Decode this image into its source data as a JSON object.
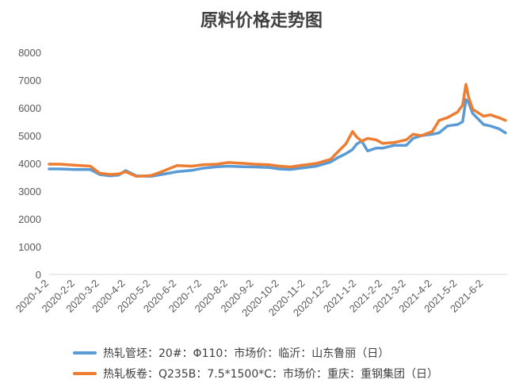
{
  "chart_data": {
    "type": "line",
    "title": "原料价格走势图",
    "xlabel": "",
    "ylabel": "",
    "ylim": [
      0,
      8000
    ],
    "yticks": [
      0,
      1000,
      2000,
      3000,
      4000,
      5000,
      6000,
      7000,
      8000
    ],
    "x_tick_labels": [
      "2020-1-2",
      "2020-2-2",
      "2020-3-2",
      "2020-4-2",
      "2020-5-2",
      "2020-6-2",
      "2020-7-2",
      "2020-8-2",
      "2020-9-2",
      "2020-10-2",
      "2020-11-2",
      "2020-12-2",
      "2021-1-2",
      "2021-2-2",
      "2021-3-2",
      "2021-4-2",
      "2021-5-2",
      "2021-6-2"
    ],
    "grid": false,
    "legend_position": "bottom",
    "series": [
      {
        "name": "热轧管坯：20#：Φ110：市场价：临沂：山东鲁丽（日）",
        "color": "#5B9BD5",
        "x": [
          "2020-1-2",
          "2020-1-15",
          "2020-2-2",
          "2020-2-20",
          "2020-3-2",
          "2020-3-15",
          "2020-3-25",
          "2020-4-2",
          "2020-4-15",
          "2020-5-2",
          "2020-5-15",
          "2020-6-2",
          "2020-6-20",
          "2020-7-2",
          "2020-7-20",
          "2020-8-2",
          "2020-8-20",
          "2020-9-2",
          "2020-9-20",
          "2020-10-2",
          "2020-10-15",
          "2020-11-2",
          "2020-11-15",
          "2020-12-2",
          "2020-12-10",
          "2020-12-20",
          "2020-12-28",
          "2021-1-2",
          "2021-1-8",
          "2021-1-15",
          "2021-1-25",
          "2021-2-2",
          "2021-2-15",
          "2021-3-2",
          "2021-3-10",
          "2021-3-20",
          "2021-4-2",
          "2021-4-10",
          "2021-4-20",
          "2021-5-2",
          "2021-5-8",
          "2021-5-12",
          "2021-5-15",
          "2021-5-20",
          "2021-6-2",
          "2021-6-10",
          "2021-6-20",
          "2021-6-28"
        ],
        "values": [
          3800,
          3800,
          3780,
          3780,
          3600,
          3550,
          3580,
          3740,
          3550,
          3530,
          3600,
          3700,
          3750,
          3820,
          3880,
          3900,
          3880,
          3870,
          3850,
          3800,
          3780,
          3850,
          3900,
          4050,
          4200,
          4350,
          4500,
          4700,
          4800,
          4450,
          4550,
          4550,
          4650,
          4650,
          4900,
          5000,
          5050,
          5100,
          5350,
          5400,
          5500,
          6300,
          6200,
          5800,
          5400,
          5350,
          5250,
          5100
        ]
      },
      {
        "name": "热轧板卷：Q235B：7.5*1500*C：市场价：重庆：重钢集团（日）",
        "color": "#ED7D31",
        "x": [
          "2020-1-2",
          "2020-1-15",
          "2020-2-2",
          "2020-2-20",
          "2020-3-2",
          "2020-3-15",
          "2020-3-25",
          "2020-4-2",
          "2020-4-15",
          "2020-5-2",
          "2020-5-15",
          "2020-6-2",
          "2020-6-20",
          "2020-7-2",
          "2020-7-20",
          "2020-8-2",
          "2020-8-20",
          "2020-9-2",
          "2020-9-20",
          "2020-10-2",
          "2020-10-15",
          "2020-11-2",
          "2020-11-15",
          "2020-12-2",
          "2020-12-10",
          "2020-12-20",
          "2020-12-28",
          "2021-1-2",
          "2021-1-8",
          "2021-1-15",
          "2021-1-25",
          "2021-2-2",
          "2021-2-15",
          "2021-3-2",
          "2021-3-10",
          "2021-3-20",
          "2021-4-2",
          "2021-4-10",
          "2021-4-20",
          "2021-5-2",
          "2021-5-8",
          "2021-5-12",
          "2021-5-15",
          "2021-5-20",
          "2021-6-2",
          "2021-6-10",
          "2021-6-20",
          "2021-6-28"
        ],
        "values": [
          3970,
          3970,
          3930,
          3900,
          3650,
          3600,
          3620,
          3700,
          3530,
          3560,
          3700,
          3920,
          3900,
          3950,
          3970,
          4030,
          4000,
          3970,
          3950,
          3900,
          3870,
          3950,
          4000,
          4150,
          4400,
          4700,
          5150,
          4950,
          4800,
          4900,
          4850,
          4720,
          4750,
          4850,
          5050,
          5000,
          5150,
          5550,
          5650,
          5850,
          6100,
          6850,
          6400,
          5950,
          5700,
          5750,
          5650,
          5550
        ]
      }
    ]
  }
}
